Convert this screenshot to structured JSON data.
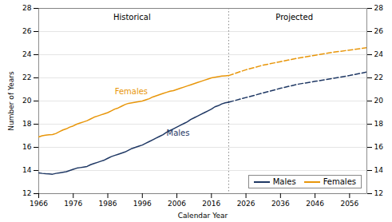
{
  "chart_data": {
    "type": "line",
    "xlabel": "Calendar Year",
    "ylabel": "Number of Years",
    "xlim": [
      1966,
      2061
    ],
    "ylim": [
      12,
      28
    ],
    "xticks": [
      1966,
      1976,
      1986,
      1996,
      2006,
      2016,
      2026,
      2036,
      2046,
      2056
    ],
    "yticks": [
      12,
      14,
      16,
      18,
      20,
      22,
      24,
      26,
      28
    ],
    "y2lim": [
      12,
      28
    ],
    "y2ticks": [
      12,
      14,
      16,
      18,
      20,
      22,
      24,
      26,
      28
    ],
    "grid": "y",
    "legend": "lower right",
    "vline": 2021,
    "series": [
      {
        "name": "Males",
        "color": "#1f3864",
        "line_style": "solid",
        "x": [
          1966,
          1967,
          1968,
          1969,
          1970,
          1971,
          1972,
          1973,
          1974,
          1975,
          1976,
          1977,
          1978,
          1979,
          1980,
          1981,
          1982,
          1983,
          1984,
          1985,
          1986,
          1987,
          1988,
          1989,
          1990,
          1991,
          1992,
          1993,
          1994,
          1995,
          1996,
          1997,
          1998,
          1999,
          2000,
          2001,
          2002,
          2003,
          2004,
          2005,
          2006,
          2007,
          2008,
          2009,
          2010,
          2011,
          2012,
          2013,
          2014,
          2015,
          2016,
          2017,
          2018,
          2019,
          2020,
          2021
        ],
        "values": [
          13.8,
          13.75,
          13.72,
          13.7,
          13.68,
          13.75,
          13.8,
          13.85,
          13.9,
          14.0,
          14.1,
          14.2,
          14.25,
          14.3,
          14.35,
          14.5,
          14.6,
          14.7,
          14.8,
          14.9,
          15.05,
          15.2,
          15.3,
          15.4,
          15.5,
          15.6,
          15.75,
          15.9,
          16.0,
          16.1,
          16.2,
          16.35,
          16.5,
          16.65,
          16.8,
          16.95,
          17.1,
          17.3,
          17.45,
          17.6,
          17.75,
          17.9,
          18.05,
          18.2,
          18.4,
          18.55,
          18.7,
          18.85,
          19.0,
          19.15,
          19.3,
          19.5,
          19.6,
          19.75,
          19.85,
          19.9
        ]
      },
      {
        "name": "Females",
        "color": "#e8960a",
        "line_style": "solid",
        "x": [
          1966,
          1967,
          1968,
          1969,
          1970,
          1971,
          1972,
          1973,
          1974,
          1975,
          1976,
          1977,
          1978,
          1979,
          1980,
          1981,
          1982,
          1983,
          1984,
          1985,
          1986,
          1987,
          1988,
          1989,
          1990,
          1991,
          1992,
          1993,
          1994,
          1995,
          1996,
          1997,
          1998,
          1999,
          2000,
          2001,
          2002,
          2003,
          2004,
          2005,
          2006,
          2007,
          2008,
          2009,
          2010,
          2011,
          2012,
          2013,
          2014,
          2015,
          2016,
          2017,
          2018,
          2019,
          2020,
          2021
        ],
        "values": [
          16.9,
          17.0,
          17.05,
          17.08,
          17.1,
          17.2,
          17.35,
          17.5,
          17.6,
          17.75,
          17.85,
          18.0,
          18.1,
          18.2,
          18.3,
          18.45,
          18.6,
          18.7,
          18.8,
          18.9,
          19.0,
          19.15,
          19.3,
          19.4,
          19.55,
          19.7,
          19.8,
          19.85,
          19.9,
          19.95,
          20.0,
          20.1,
          20.2,
          20.35,
          20.45,
          20.55,
          20.65,
          20.75,
          20.85,
          20.9,
          21.0,
          21.1,
          21.2,
          21.3,
          21.4,
          21.5,
          21.6,
          21.7,
          21.8,
          21.9,
          22.0,
          22.05,
          22.1,
          22.15,
          22.18,
          22.2
        ]
      },
      {
        "name": "Males",
        "color": "#1f3864",
        "line_style": "dashed",
        "x": [
          2021,
          2026,
          2031,
          2036,
          2041,
          2046,
          2051,
          2056,
          2061
        ],
        "values": [
          19.9,
          20.3,
          20.7,
          21.1,
          21.45,
          21.7,
          21.95,
          22.2,
          22.5
        ]
      },
      {
        "name": "Females",
        "color": "#e8960a",
        "line_style": "dashed",
        "x": [
          2021,
          2026,
          2031,
          2036,
          2041,
          2046,
          2051,
          2056,
          2061
        ],
        "values": [
          22.2,
          22.7,
          23.1,
          23.4,
          23.7,
          23.95,
          24.2,
          24.4,
          24.6
        ]
      }
    ],
    "annotations": [
      {
        "text": "Females",
        "x": 1988,
        "y": 20.6,
        "color": "#e8960a"
      },
      {
        "text": "Males",
        "x": 2003,
        "y": 17.0,
        "color": "#1f3864"
      },
      {
        "text": "Historical",
        "x": 1993,
        "y": 27.5
      },
      {
        "text": "Projected",
        "x": 2040,
        "y": 27.5
      }
    ]
  }
}
